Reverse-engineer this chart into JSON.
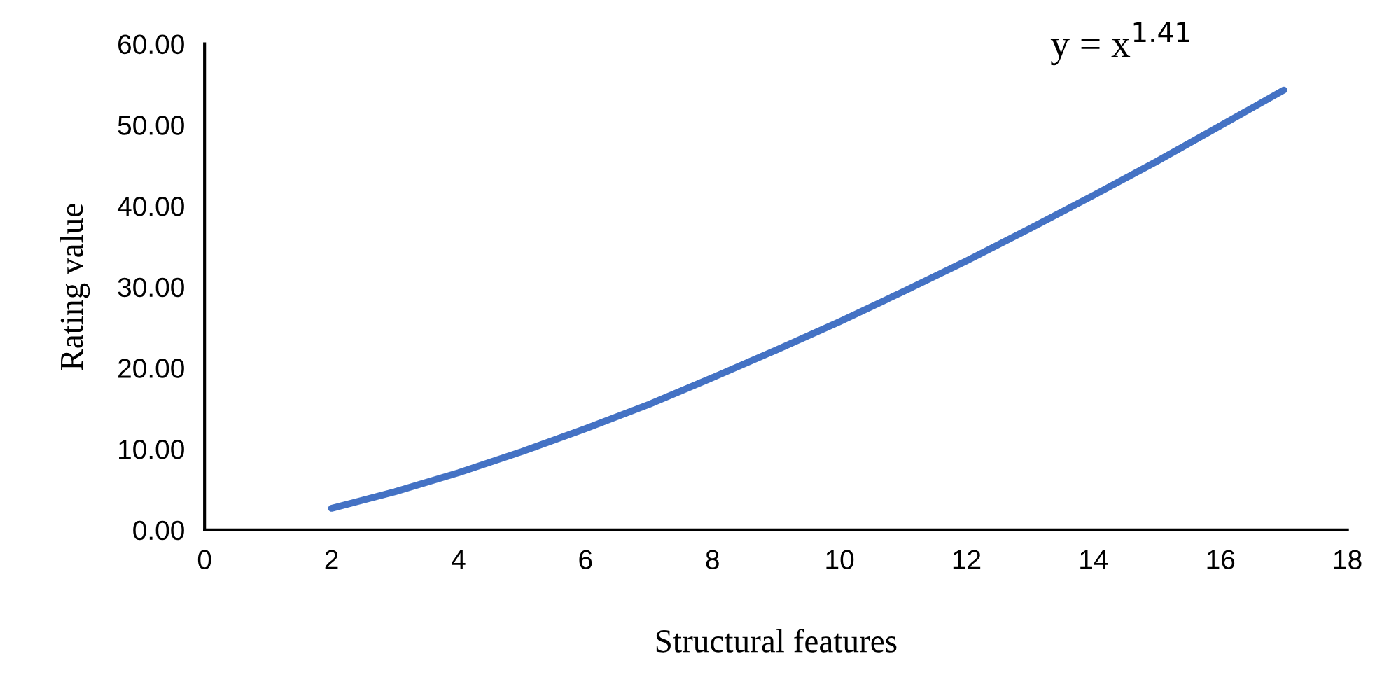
{
  "chart_data": {
    "type": "line",
    "xlabel": "Structural features",
    "ylabel": "Rating value",
    "annotations": [
      "y = x$^{1.41}$"
    ],
    "x": [
      2,
      3,
      4,
      5,
      6,
      7,
      8,
      9,
      10,
      11,
      12,
      13,
      14,
      15,
      16,
      17
    ],
    "series": [
      {
        "color": "#4472c4",
        "values": [
          2.66,
          4.71,
          7.06,
          9.67,
          12.5,
          15.5,
          18.8,
          22.2,
          25.7,
          29.4,
          33.2,
          37.2,
          41.3,
          45.5,
          49.9,
          54.3
        ]
      }
    ],
    "xlim": [
      0,
      18
    ],
    "xticks": [
      0,
      2,
      4,
      6,
      8,
      10,
      12,
      14,
      16,
      18
    ],
    "ylim": [
      0,
      60
    ],
    "yticks": [
      {
        "value": 0,
        "label": "0.00"
      },
      {
        "value": 10,
        "label": "10.00"
      },
      {
        "value": 20,
        "label": "20.00"
      },
      {
        "value": 30,
        "label": "30.00"
      },
      {
        "value": 40,
        "label": "40.00"
      },
      {
        "value": 50,
        "label": "50.00"
      },
      {
        "value": 60,
        "label": "60.00"
      }
    ],
    "grid": false,
    "legend": false,
    "marker": "none",
    "line_style": "solid"
  }
}
